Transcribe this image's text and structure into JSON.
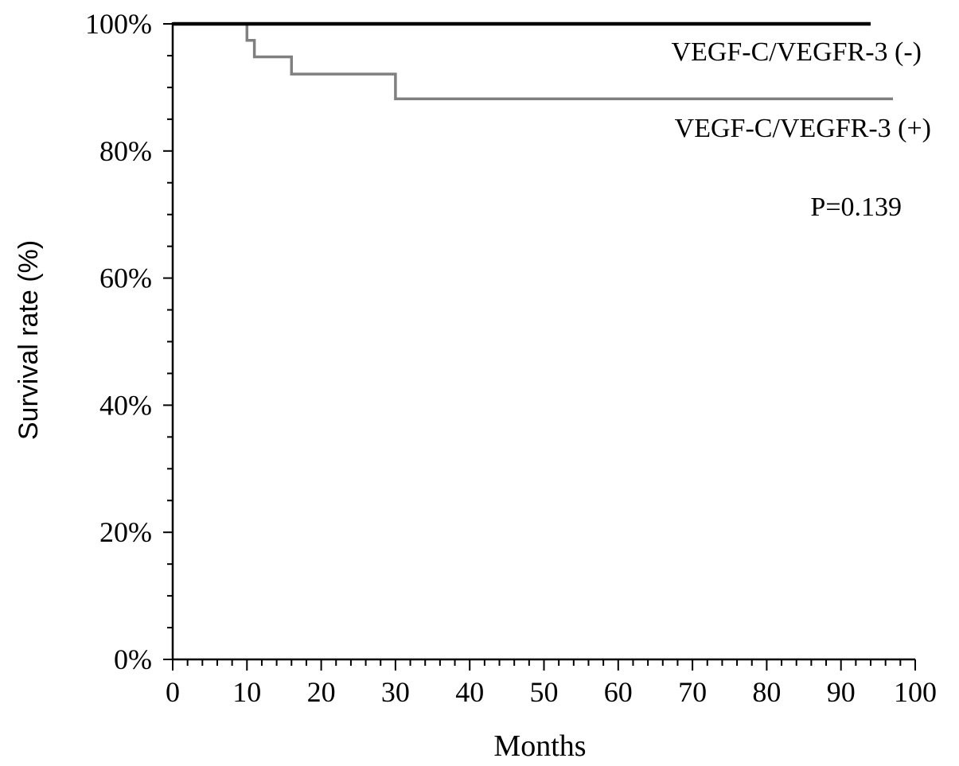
{
  "chart_data": {
    "type": "line",
    "subtype": "kaplan-meier step curve",
    "xlabel": "Months",
    "ylabel": "Survival rate (%)",
    "xlim": [
      0,
      100
    ],
    "ylim": [
      0,
      100
    ],
    "x_ticks": [
      "0",
      "10",
      "20",
      "30",
      "40",
      "50",
      "60",
      "70",
      "80",
      "90",
      "100"
    ],
    "y_ticks": [
      "0%",
      "20%",
      "40%",
      "60%",
      "80%",
      "100%"
    ],
    "grid": false,
    "series": [
      {
        "name": "VEGF-C/VEGFR-3 (-)",
        "color": "#000000",
        "x": [
          0,
          94
        ],
        "y": [
          100,
          100
        ]
      },
      {
        "name": "VEGF-C/VEGFR-3 (+)",
        "color": "#808080",
        "x": [
          0,
          10,
          11,
          16,
          30,
          97
        ],
        "y": [
          100,
          97.4,
          94.8,
          92.1,
          88.2,
          88.2
        ]
      }
    ],
    "annotations": [
      "P=0.139"
    ]
  }
}
